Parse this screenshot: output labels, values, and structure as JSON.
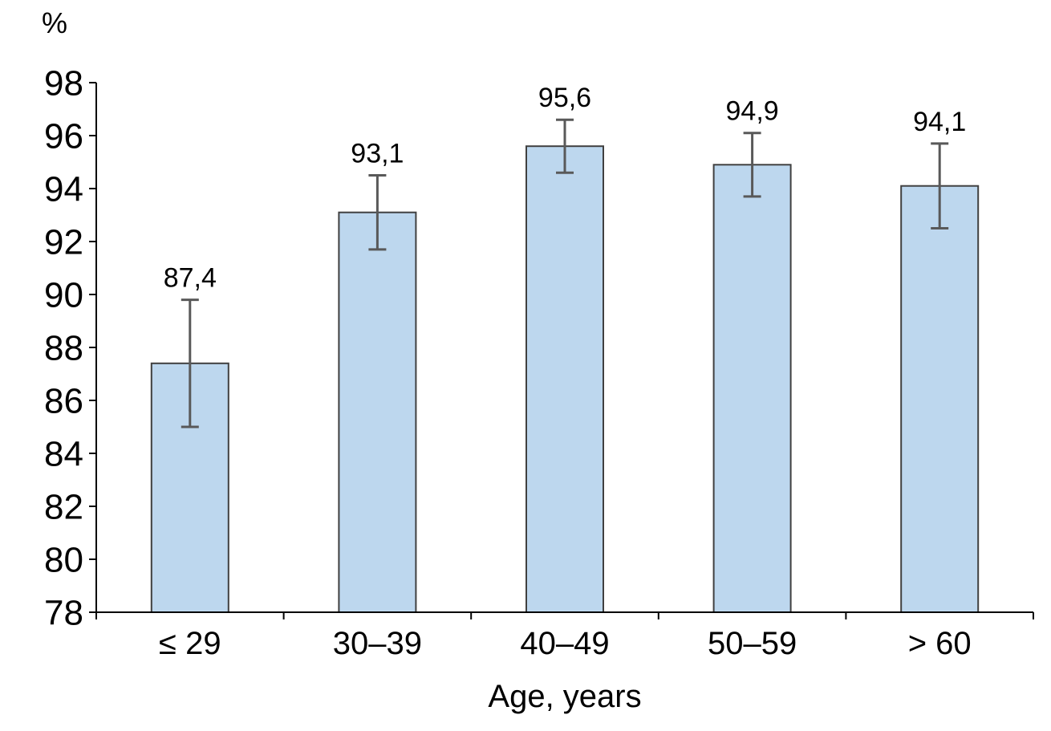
{
  "chart_data": {
    "type": "bar",
    "title": "",
    "xlabel": "Age, years",
    "ylabel": "%",
    "categories": [
      "≤ 29",
      "30–39",
      "40–49",
      "50–59",
      "> 60"
    ],
    "values": [
      87.4,
      93.1,
      95.6,
      94.9,
      94.1
    ],
    "value_labels": [
      "87,4",
      "93,1",
      "95,6",
      "94,9",
      "94,1"
    ],
    "errors": [
      2.4,
      1.4,
      1.0,
      1.2,
      1.6
    ],
    "ylim": [
      78,
      98
    ],
    "ytick_step": 2,
    "yticks": [
      78,
      80,
      82,
      84,
      86,
      88,
      90,
      92,
      94,
      96,
      98
    ],
    "grid": false,
    "legend_position": "none",
    "colors": {
      "bar_fill": "#BDD7EE",
      "bar_border": "#404040",
      "error_bar": "#595959",
      "axis": "#000000",
      "text": "#000000",
      "background": "#FFFFFF"
    }
  }
}
